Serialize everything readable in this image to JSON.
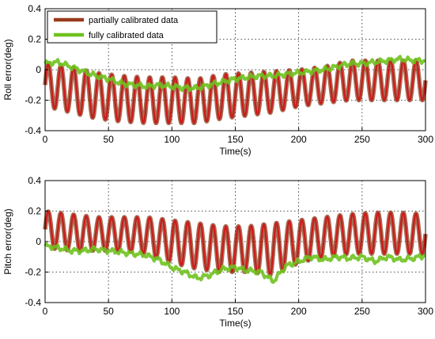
{
  "chart_data": [
    {
      "type": "line",
      "xlabel": "Time(s)",
      "ylabel": "Roll error(deg)",
      "xlim": [
        0,
        300
      ],
      "ylim": [
        -0.4,
        0.4
      ],
      "xticks": [
        0,
        50,
        100,
        150,
        200,
        250,
        300
      ],
      "yticks": [
        0.4,
        0.2,
        0,
        -0.2,
        -0.4
      ],
      "x_tick_labels": [
        "0",
        "50",
        "100",
        "150",
        "200",
        "250",
        "300"
      ],
      "y_tick_labels": [
        "0.4",
        "0.2",
        "0",
        "-0.2",
        "-0.4"
      ],
      "grid": true,
      "legend_position": "top-left",
      "legend": [
        {
          "name": "partially calibrated data",
          "color": "#9a3a1e"
        },
        {
          "name": "fully calibrated data",
          "color": "#6fc21f"
        }
      ],
      "series": [
        {
          "name": "partially calibrated data",
          "color": "#cc1a1a",
          "shade_color": "#8a3a1a",
          "period": 10,
          "x": [
            0,
            20,
            40,
            60,
            80,
            100,
            120,
            140,
            160,
            180,
            200,
            220,
            240,
            260,
            280,
            300
          ],
          "upper": [
            0.04,
            0.02,
            -0.02,
            -0.04,
            -0.05,
            -0.05,
            -0.06,
            -0.03,
            -0.02,
            -0.01,
            0.0,
            0.02,
            0.06,
            0.06,
            0.06,
            0.06
          ],
          "lower": [
            -0.24,
            -0.28,
            -0.32,
            -0.34,
            -0.35,
            -0.35,
            -0.35,
            -0.32,
            -0.3,
            -0.28,
            -0.24,
            -0.22,
            -0.2,
            -0.2,
            -0.2,
            -0.2
          ]
        },
        {
          "name": "fully calibrated data",
          "color": "#6fc21f",
          "x": [
            0,
            10,
            20,
            30,
            40,
            50,
            60,
            70,
            80,
            90,
            100,
            110,
            120,
            130,
            140,
            150,
            160,
            170,
            180,
            190,
            200,
            210,
            220,
            230,
            240,
            250,
            260,
            270,
            280,
            290,
            300
          ],
          "y": [
            0.04,
            0.05,
            0.02,
            -0.01,
            -0.04,
            -0.06,
            -0.09,
            -0.1,
            -0.11,
            -0.1,
            -0.11,
            -0.12,
            -0.12,
            -0.1,
            -0.08,
            -0.06,
            -0.05,
            -0.04,
            -0.04,
            -0.03,
            -0.02,
            -0.01,
            0.0,
            0.02,
            0.04,
            0.04,
            0.05,
            0.06,
            0.07,
            0.06,
            0.06
          ]
        }
      ]
    },
    {
      "type": "line",
      "xlabel": "Time(s)",
      "ylabel": "Pitch error(deg)",
      "xlim": [
        0,
        300
      ],
      "ylim": [
        -0.4,
        0.4
      ],
      "xticks": [
        0,
        50,
        100,
        150,
        200,
        250,
        300
      ],
      "yticks": [
        0.4,
        0.2,
        0,
        -0.2,
        -0.4
      ],
      "x_tick_labels": [
        "0",
        "50",
        "100",
        "150",
        "200",
        "250",
        "300"
      ],
      "y_tick_labels": [
        "0.4",
        "0.2",
        "0",
        "-0.2",
        "-0.4"
      ],
      "grid": true,
      "series": [
        {
          "name": "partially calibrated data",
          "color": "#cc1a1a",
          "shade_color": "#8a3a1a",
          "period": 10,
          "x": [
            0,
            20,
            40,
            60,
            80,
            100,
            120,
            140,
            160,
            180,
            200,
            220,
            240,
            260,
            280,
            300
          ],
          "upper": [
            0.2,
            0.18,
            0.16,
            0.16,
            0.16,
            0.14,
            0.12,
            0.1,
            0.1,
            0.12,
            0.14,
            0.16,
            0.18,
            0.19,
            0.19,
            0.18
          ],
          "lower": [
            -0.04,
            -0.06,
            -0.06,
            -0.06,
            -0.08,
            -0.14,
            -0.18,
            -0.2,
            -0.2,
            -0.22,
            -0.14,
            -0.1,
            -0.08,
            -0.08,
            -0.08,
            -0.08
          ]
        },
        {
          "name": "fully calibrated data",
          "color": "#6fc21f",
          "x": [
            0,
            10,
            20,
            30,
            40,
            50,
            60,
            70,
            80,
            90,
            100,
            110,
            120,
            130,
            140,
            150,
            160,
            170,
            180,
            190,
            200,
            210,
            220,
            230,
            240,
            250,
            260,
            270,
            280,
            290,
            300
          ],
          "y": [
            -0.03,
            -0.04,
            -0.06,
            -0.06,
            -0.05,
            -0.06,
            -0.07,
            -0.08,
            -0.09,
            -0.12,
            -0.17,
            -0.2,
            -0.24,
            -0.22,
            -0.18,
            -0.17,
            -0.19,
            -0.2,
            -0.26,
            -0.16,
            -0.13,
            -0.1,
            -0.12,
            -0.1,
            -0.11,
            -0.1,
            -0.13,
            -0.1,
            -0.12,
            -0.11,
            -0.09
          ]
        }
      ]
    }
  ]
}
